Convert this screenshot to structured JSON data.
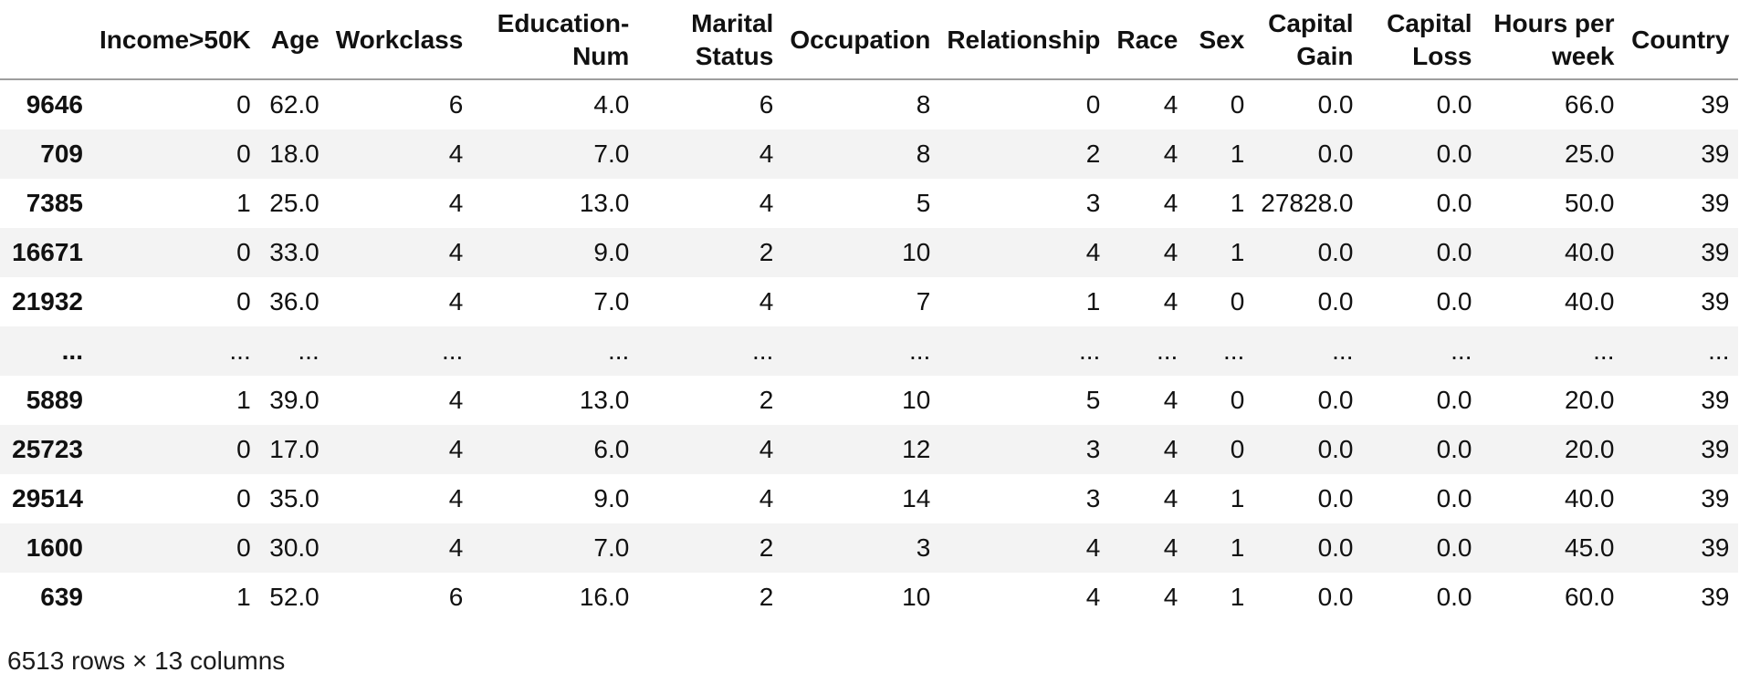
{
  "dataframe": {
    "column_headers": [
      "",
      "Income>50K",
      "Age",
      "Workclass",
      "Education-Num",
      "Marital Status",
      "Occupation",
      "Relationship",
      "Race",
      "Sex",
      "Capital Gain",
      "Capital Loss",
      "Hours per week",
      "Country"
    ],
    "rows": [
      {
        "index": "9646",
        "cells": [
          "0",
          "62.0",
          "6",
          "4.0",
          "6",
          "8",
          "0",
          "4",
          "0",
          "0.0",
          "0.0",
          "66.0",
          "39"
        ]
      },
      {
        "index": "709",
        "cells": [
          "0",
          "18.0",
          "4",
          "7.0",
          "4",
          "8",
          "2",
          "4",
          "1",
          "0.0",
          "0.0",
          "25.0",
          "39"
        ]
      },
      {
        "index": "7385",
        "cells": [
          "1",
          "25.0",
          "4",
          "13.0",
          "4",
          "5",
          "3",
          "4",
          "1",
          "27828.0",
          "0.0",
          "50.0",
          "39"
        ]
      },
      {
        "index": "16671",
        "cells": [
          "0",
          "33.0",
          "4",
          "9.0",
          "2",
          "10",
          "4",
          "4",
          "1",
          "0.0",
          "0.0",
          "40.0",
          "39"
        ]
      },
      {
        "index": "21932",
        "cells": [
          "0",
          "36.0",
          "4",
          "7.0",
          "4",
          "7",
          "1",
          "4",
          "0",
          "0.0",
          "0.0",
          "40.0",
          "39"
        ]
      },
      {
        "index": "...",
        "cells": [
          "...",
          "...",
          "...",
          "...",
          "...",
          "...",
          "...",
          "...",
          "...",
          "...",
          "...",
          "...",
          "..."
        ]
      },
      {
        "index": "5889",
        "cells": [
          "1",
          "39.0",
          "4",
          "13.0",
          "2",
          "10",
          "5",
          "4",
          "0",
          "0.0",
          "0.0",
          "20.0",
          "39"
        ]
      },
      {
        "index": "25723",
        "cells": [
          "0",
          "17.0",
          "4",
          "6.0",
          "4",
          "12",
          "3",
          "4",
          "0",
          "0.0",
          "0.0",
          "20.0",
          "39"
        ]
      },
      {
        "index": "29514",
        "cells": [
          "0",
          "35.0",
          "4",
          "9.0",
          "4",
          "14",
          "3",
          "4",
          "1",
          "0.0",
          "0.0",
          "40.0",
          "39"
        ]
      },
      {
        "index": "1600",
        "cells": [
          "0",
          "30.0",
          "4",
          "7.0",
          "2",
          "3",
          "4",
          "4",
          "1",
          "0.0",
          "0.0",
          "45.0",
          "39"
        ]
      },
      {
        "index": "639",
        "cells": [
          "1",
          "52.0",
          "6",
          "16.0",
          "2",
          "10",
          "4",
          "4",
          "1",
          "0.0",
          "0.0",
          "60.0",
          "39"
        ]
      }
    ],
    "shape_summary": "6513 rows × 13 columns",
    "colors": {
      "background": "#ffffff",
      "stripe_background": "#f3f3f3",
      "header_border": "#9e9e9e",
      "text": "#111111"
    }
  }
}
